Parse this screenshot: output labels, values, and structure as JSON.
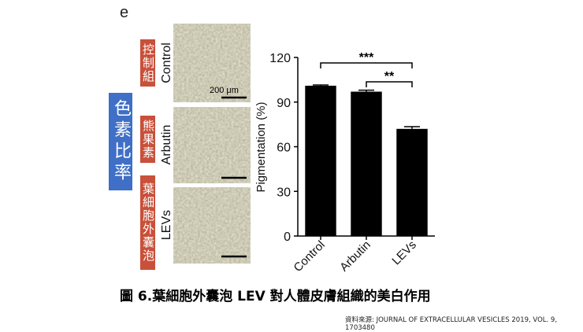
{
  "panel_label": "e",
  "side_label": "色素比率",
  "row_labels": [
    "控制組",
    "熊果素",
    "葉細胞外囊泡"
  ],
  "image_labels": [
    "Control",
    "Arbutin",
    "LEVs"
  ],
  "scale_label": "200 μm",
  "chart_data": {
    "type": "bar",
    "ylabel": "Pigmentation (%)",
    "categories": [
      "Control",
      "Arbutin",
      "LEVs"
    ],
    "values": [
      101,
      97,
      72
    ],
    "errors": [
      0.5,
      1,
      1.5
    ],
    "color": "#000000",
    "ylim": [
      0,
      120
    ],
    "yticks": [
      0,
      30,
      60,
      90,
      120
    ],
    "annotations": [
      "***",
      "**"
    ]
  },
  "caption": "圖 6.葉細胞外囊泡 LEV 對人體皮膚組織的美白作用",
  "source": "資料來源: JOURNAL OF EXTRACELLULAR VESICLES 2019, VOL. 9, 1703480"
}
